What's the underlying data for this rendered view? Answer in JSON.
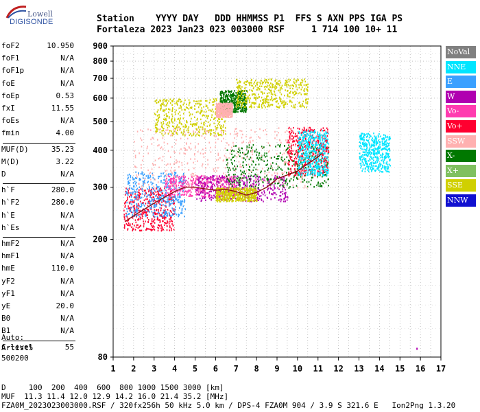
{
  "logo": {
    "line1": "Lowell",
    "line2": "DIGISONDE"
  },
  "header": {
    "row1": "Station    YYYY DAY   DDD HHMMSS P1  FFS S AXN PPS IGA PS",
    "row2": "Fortaleza 2023 Jan23 023 003000 RSF     1 714 100 10+ 11"
  },
  "params": {
    "group1": [
      {
        "label": "foF2",
        "value": "10.950"
      },
      {
        "label": "foF1",
        "value": "N/A"
      },
      {
        "label": "foF1p",
        "value": "N/A"
      },
      {
        "label": "foE",
        "value": "N/A"
      },
      {
        "label": "foEp",
        "value": "0.53"
      },
      {
        "label": "fxI",
        "value": "11.55"
      },
      {
        "label": "foEs",
        "value": "N/A"
      },
      {
        "label": "fmin",
        "value": "4.00"
      }
    ],
    "group2": [
      {
        "label": "MUF(D)",
        "value": "35.23"
      },
      {
        "label": "M(D)",
        "value": "3.22"
      },
      {
        "label": "D",
        "value": "N/A"
      }
    ],
    "group3": [
      {
        "label": "h`F",
        "value": "280.0"
      },
      {
        "label": "h`F2",
        "value": "280.0"
      },
      {
        "label": "h`E",
        "value": "N/A"
      },
      {
        "label": "h`Es",
        "value": "N/A"
      }
    ],
    "group4": [
      {
        "label": "hmF2",
        "value": "N/A"
      },
      {
        "label": "hmF1",
        "value": "N/A"
      },
      {
        "label": "hmE",
        "value": "110.0"
      },
      {
        "label": "yF2",
        "value": "N/A"
      },
      {
        "label": "yF1",
        "value": "N/A"
      },
      {
        "label": "yE",
        "value": "20.0"
      },
      {
        "label": "B0",
        "value": "N/A"
      },
      {
        "label": "B1",
        "value": "N/A"
      }
    ],
    "group5": [
      {
        "label": "C-level",
        "value": "55"
      }
    ]
  },
  "auto": {
    "line1": "Auto:",
    "line2": "Artist5",
    "line3": "500200"
  },
  "legend": [
    {
      "label": "NoVal",
      "color": "#808080"
    },
    {
      "label": "NNE",
      "color": "#00e5ff"
    },
    {
      "label": "E",
      "color": "#3aa0ff"
    },
    {
      "label": "W",
      "color": "#b000b0"
    },
    {
      "label": "Vo-",
      "color": "#ff3bb0"
    },
    {
      "label": "Vo+",
      "color": "#ff0030"
    },
    {
      "label": "SSW",
      "color": "#ffb0b0"
    },
    {
      "label": "X-",
      "color": "#007800"
    },
    {
      "label": "X+",
      "color": "#80c060"
    },
    {
      "label": "SSE",
      "color": "#d0d000"
    },
    {
      "label": "NNW",
      "color": "#1010d0"
    }
  ],
  "bottom": {
    "line1": "D     100  200  400  600  800 1000 1500 3000 [km]",
    "line2": "MUF  11.3 11.4 12.0 12.9 14.2 16.0 21.4 35.2 [MHz]",
    "line3": "FZA0M_2023023003000.RSF / 320fx256h 50 kHz 5.0 km / DPS-4 FZA0M 904 / 3.9 S 321.6 E   Ion2Png 1.3.20"
  },
  "chart_data": {
    "type": "scatter",
    "xlim": [
      1,
      17
    ],
    "ylim": [
      80,
      900
    ],
    "yscale": "log",
    "xticks": [
      1,
      2,
      3,
      4,
      5,
      6,
      7,
      8,
      9,
      10,
      11,
      12,
      13,
      14,
      15,
      16,
      17
    ],
    "yticks": [
      80,
      200,
      300,
      400,
      500,
      600,
      700,
      800,
      900
    ],
    "grid": true,
    "o_trace": {
      "x": [
        1.6,
        2.0,
        3.0,
        4.0,
        4.5,
        5.0,
        5.5,
        6.0,
        6.5,
        7.0,
        7.5,
        8.0,
        8.5,
        9.0,
        9.5,
        10.0,
        10.5,
        11.0,
        11.2
      ],
      "y": [
        230,
        240,
        265,
        290,
        300,
        300,
        296,
        293,
        295,
        290,
        282,
        288,
        300,
        320,
        330,
        340,
        360,
        380,
        390
      ]
    },
    "clusters": [
      {
        "x": [
          1.5,
          4.0
        ],
        "y": [
          215,
          300
        ],
        "color": "#ff0030"
      },
      {
        "x": [
          1.6,
          4.5
        ],
        "y": [
          240,
          340
        ],
        "color": "#3aa0ff"
      },
      {
        "x": [
          3.5,
          7.0
        ],
        "y": [
          280,
          330
        ],
        "color": "#ff3bb0"
      },
      {
        "x": [
          5.0,
          9.5
        ],
        "y": [
          270,
          330
        ],
        "color": "#b000b0"
      },
      {
        "x": [
          6.5,
          11.5
        ],
        "y": [
          300,
          420
        ],
        "color": "#007800"
      },
      {
        "x": [
          9.5,
          11.5
        ],
        "y": [
          330,
          480
        ],
        "color": "#ff0030"
      },
      {
        "x": [
          6.0,
          8.0
        ],
        "y": [
          270,
          300
        ],
        "color": "#d0d000"
      },
      {
        "x": [
          3.0,
          6.5
        ],
        "y": [
          450,
          600
        ],
        "color": "#d0d000"
      },
      {
        "x": [
          6.2,
          7.5
        ],
        "y": [
          540,
          640
        ],
        "color": "#007800"
      },
      {
        "x": [
          6.0,
          6.8
        ],
        "y": [
          520,
          580
        ],
        "color": "#ffb0b0"
      },
      {
        "x": [
          7.0,
          10.5
        ],
        "y": [
          560,
          700
        ],
        "color": "#d0d000"
      },
      {
        "x": [
          13.0,
          14.5
        ],
        "y": [
          340,
          460
        ],
        "color": "#00e5ff"
      },
      {
        "x": [
          2.0,
          10.5
        ],
        "y": [
          300,
          480
        ],
        "color": "#ffb0b0"
      },
      {
        "x": [
          10.0,
          11.5
        ],
        "y": [
          330,
          470
        ],
        "color": "#00e5ff"
      }
    ]
  }
}
